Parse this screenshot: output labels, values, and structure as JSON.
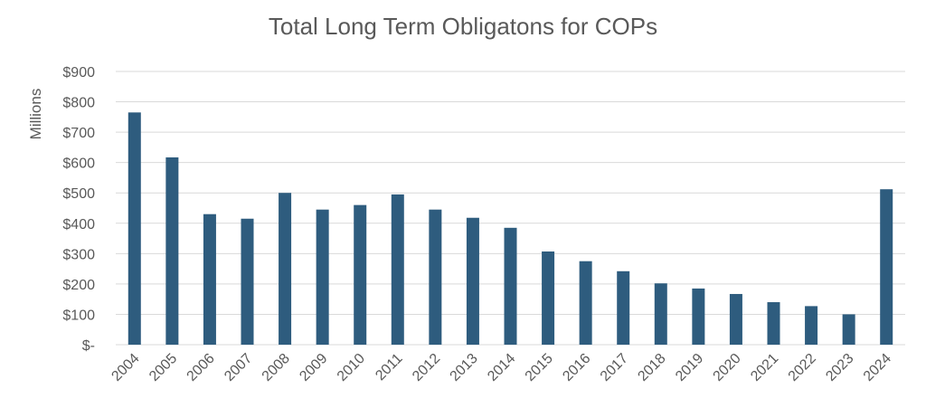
{
  "chart_data": {
    "type": "bar",
    "title": "Total Long Term Obligatons for COPs",
    "ylabel": "Millions",
    "xlabel": "",
    "categories": [
      "2004",
      "2005",
      "2006",
      "2007",
      "2008",
      "2009",
      "2010",
      "2011",
      "2012",
      "2013",
      "2014",
      "2015",
      "2016",
      "2017",
      "2018",
      "2019",
      "2020",
      "2021",
      "2022",
      "2023",
      "2024"
    ],
    "values": [
      765,
      617,
      430,
      415,
      500,
      445,
      460,
      495,
      445,
      418,
      385,
      307,
      275,
      242,
      202,
      185,
      167,
      140,
      127,
      100,
      512
    ],
    "ylim": [
      0,
      900
    ],
    "yticks": [
      0,
      100,
      200,
      300,
      400,
      500,
      600,
      700,
      800,
      900
    ],
    "ytick_labels": [
      "$-",
      "$100",
      "$200",
      "$300",
      "$400",
      "$500",
      "$600",
      "$700",
      "$800",
      "$900"
    ],
    "grid": true,
    "bar_color": "#2E5C7E",
    "grid_color": "#D9D9D9"
  }
}
